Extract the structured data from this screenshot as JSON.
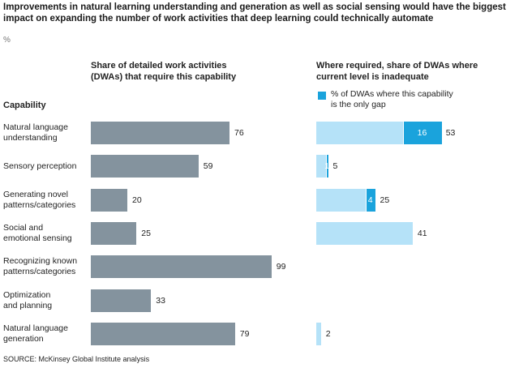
{
  "chart_data": {
    "type": "bar",
    "title": "Improvements in natural learning understanding and generation as well as social sensing would have the biggest\nimpact on expanding the number of work activities that deep learning could technically automate",
    "unit": "%",
    "category_header": "Capability",
    "categories": [
      "Natural language\nunderstanding",
      "Sensory perception",
      "Generating novel\npatterns/categories",
      "Social and\nemotional sensing",
      "Recognizing known\npatterns/categories",
      "Optimization\nand planning",
      "Natural language\ngeneration"
    ],
    "series": [
      {
        "name": "Share of detailed work activities\n(DWAs) that require this capability",
        "values": [
          76,
          59,
          20,
          25,
          99,
          33,
          79
        ]
      },
      {
        "name": "Where required, share of DWAs where\ncurrent level is inadequate",
        "values": [
          53,
          5,
          25,
          41,
          null,
          null,
          2
        ]
      },
      {
        "name": "% of DWAs where this capability\nis the only gap",
        "values": [
          16,
          1,
          4,
          null,
          null,
          null,
          null
        ]
      }
    ],
    "source": "SOURCE:  McKinsey Global Institute analysis",
    "colors": {
      "left": "#84939e",
      "right": "#b5e2f8",
      "gap": "#1aa3dc"
    }
  }
}
